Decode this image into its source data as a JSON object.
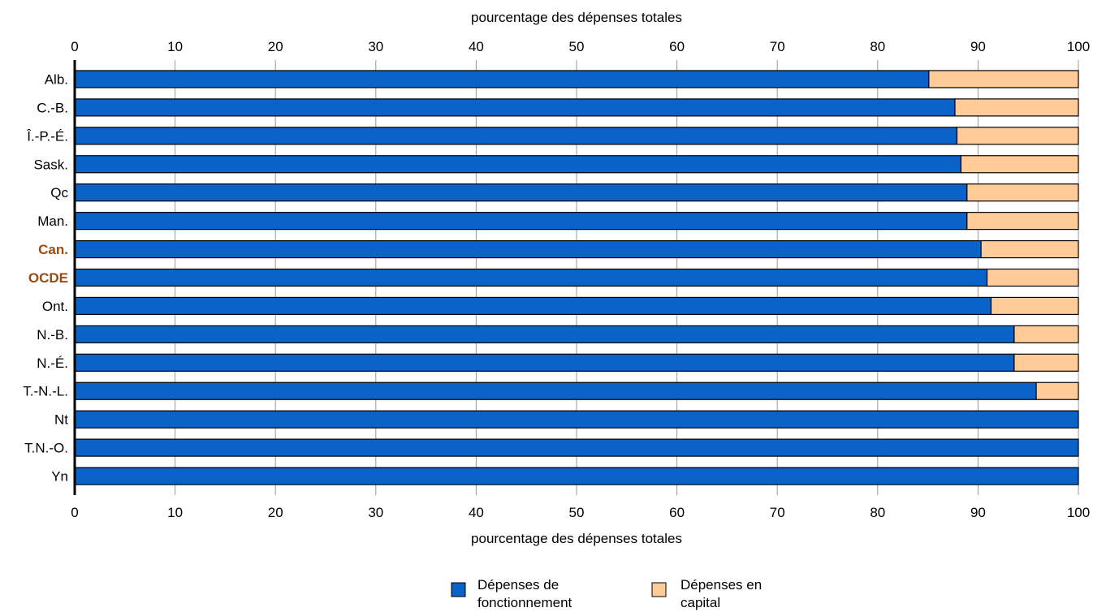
{
  "chart_data": {
    "type": "bar",
    "orientation": "horizontal",
    "stacked": true,
    "xlabel": "pourcentage des dépenses totales",
    "xlim": [
      0,
      100
    ],
    "ticks": [
      "0",
      "10",
      "20",
      "30",
      "40",
      "50",
      "60",
      "70",
      "80",
      "90",
      "100"
    ],
    "grid": true,
    "categories": [
      "Alb.",
      "C.-B.",
      "Î.-P.-É.",
      "Sask.",
      "Qc",
      "Man.",
      "Can.",
      "OCDE",
      "Ont.",
      "N.-B.",
      "N.-É.",
      "T.-N.-L.",
      "Nt",
      "T.N.-O.",
      "Yn"
    ],
    "highlighted_categories": [
      "Can.",
      "OCDE"
    ],
    "series": [
      {
        "name": "Dépenses de fonctionnement",
        "color": "#0a63c9",
        "values": [
          85.1,
          87.7,
          87.9,
          88.3,
          88.9,
          88.9,
          90.3,
          90.9,
          91.3,
          93.6,
          93.6,
          95.8,
          100,
          100,
          100
        ]
      },
      {
        "name": "Dépenses en capital",
        "color": "#ffcc99",
        "values": [
          14.9,
          12.3,
          12.1,
          11.7,
          11.1,
          11.1,
          9.7,
          9.1,
          8.7,
          6.4,
          6.4,
          4.2,
          0,
          0,
          0
        ]
      }
    ],
    "legend": {
      "placement": "bottom-center",
      "lines": [
        [
          "Dépenses de",
          "fonctionnement"
        ],
        [
          "Dépenses en",
          "capital"
        ]
      ]
    },
    "colors": {
      "highlight_label": "#9b4a12",
      "grid": "#999999"
    }
  }
}
